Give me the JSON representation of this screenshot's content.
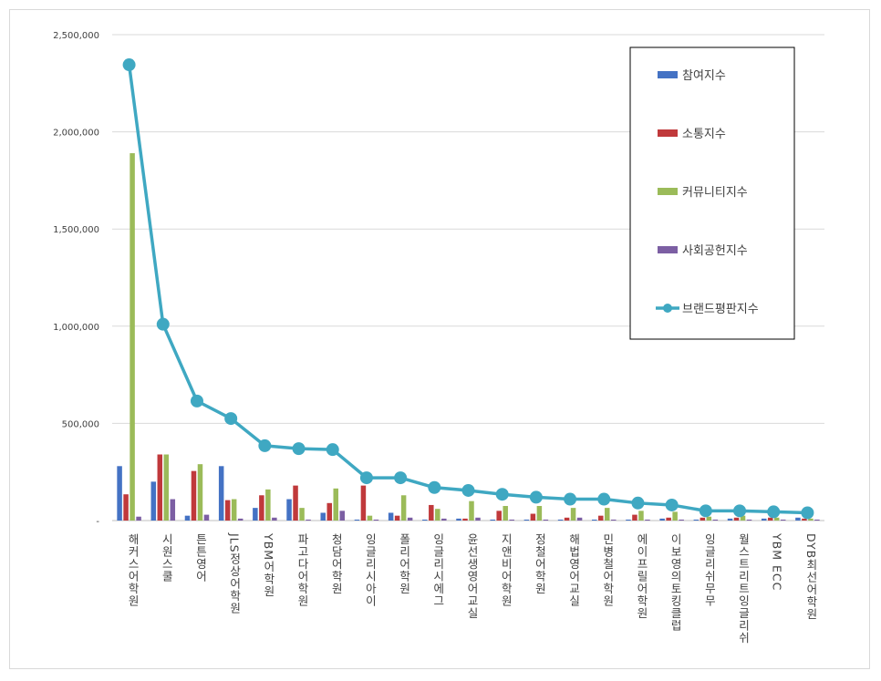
{
  "chart_data": {
    "type": "bar",
    "categories": [
      "해커스어학원",
      "시원스쿨",
      "튼튼영어",
      "JLS정상어학원",
      "YBM어학원",
      "파고다어학원",
      "청담어학원",
      "잉글리시아이",
      "폴리어학원",
      "잉글리시에그",
      "윤선생영어교실",
      "지앤비어학원",
      "정철어학원",
      "해법영어교실",
      "민병철어학원",
      "에이프릴어학원",
      "이보영의토킹클럽",
      "잉글리쉬무무",
      "월스트리트잉글리쉬",
      "YBM ECC",
      "DYB최선어학원"
    ],
    "series": [
      {
        "name": "참여지수",
        "kind": "bar",
        "color": "#4472c4",
        "values": [
          280000,
          200000,
          25000,
          280000,
          65000,
          110000,
          40000,
          5000,
          40000,
          5000,
          10000,
          5000,
          5000,
          5000,
          5000,
          5000,
          10000,
          5000,
          10000,
          10000,
          15000
        ]
      },
      {
        "name": "소통지수",
        "kind": "bar",
        "color": "#c0393b",
        "values": [
          135000,
          340000,
          255000,
          105000,
          130000,
          180000,
          90000,
          180000,
          25000,
          80000,
          10000,
          50000,
          35000,
          15000,
          25000,
          30000,
          15000,
          15000,
          15000,
          15000,
          10000
        ]
      },
      {
        "name": "커뮤니티지수",
        "kind": "bar",
        "color": "#9bbb59",
        "values": [
          1890000,
          340000,
          290000,
          110000,
          160000,
          65000,
          165000,
          25000,
          130000,
          60000,
          100000,
          75000,
          75000,
          65000,
          65000,
          50000,
          45000,
          20000,
          25000,
          15000,
          10000
        ]
      },
      {
        "name": "사회공헌지수",
        "kind": "bar",
        "color": "#7c5fa3",
        "values": [
          20000,
          110000,
          30000,
          10000,
          15000,
          5000,
          50000,
          5000,
          15000,
          10000,
          15000,
          5000,
          5000,
          15000,
          5000,
          5000,
          5000,
          5000,
          5000,
          5000,
          5000
        ]
      },
      {
        "name": "브랜드평판지수",
        "kind": "line",
        "color": "#3fa8c2",
        "values": [
          2345000,
          1010000,
          615000,
          525000,
          385000,
          370000,
          365000,
          220000,
          220000,
          170000,
          155000,
          135000,
          120000,
          110000,
          110000,
          90000,
          80000,
          50000,
          50000,
          45000,
          40000
        ]
      }
    ],
    "yticks": [
      "2,500,000",
      "2,000,000",
      "1,500,000",
      "1,000,000",
      "500,000",
      "-"
    ],
    "ytick_values": [
      2500000,
      2000000,
      1500000,
      1000000,
      500000,
      0
    ],
    "ylim": [
      0,
      2500000
    ],
    "grid": true,
    "legend_position": "top-right"
  }
}
